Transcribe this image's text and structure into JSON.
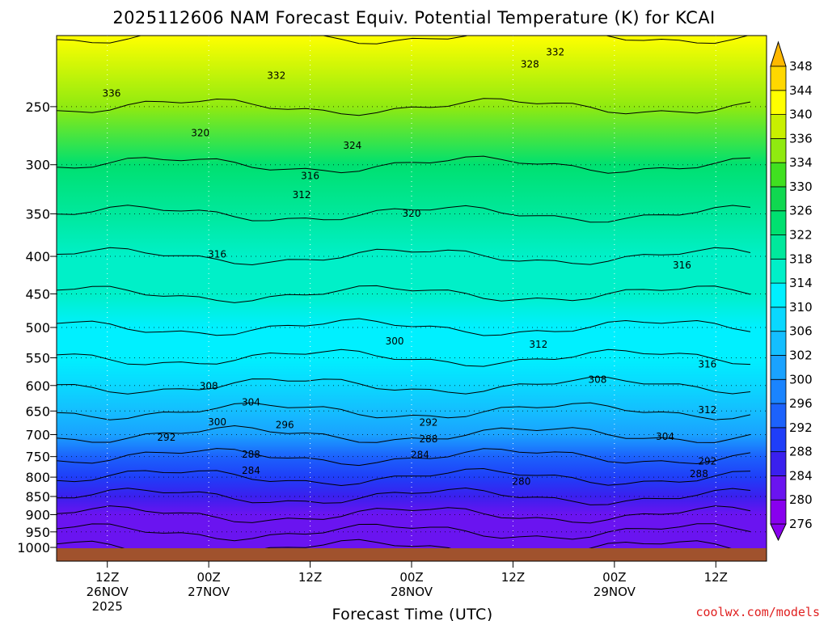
{
  "title": "2025112606 NAM Forecast Equiv. Potential Temperature (K) for KCAI",
  "credit": "coolwx.com/models",
  "chart_data": {
    "type": "heatmap",
    "title": "2025112606 NAM Forecast Equiv. Potential Temperature (K) for KCAI",
    "xlabel": "Forecast Time (UTC)",
    "ylabel": "",
    "x_range_hours": [
      6,
      90
    ],
    "y_range_mb": [
      200,
      1000
    ],
    "y_scale": "log",
    "y_ticks": [
      250,
      300,
      350,
      400,
      450,
      500,
      550,
      600,
      650,
      700,
      750,
      800,
      850,
      900,
      950,
      1000
    ],
    "x_ticks": [
      {
        "hour": 12,
        "lines": [
          "12Z",
          "26NOV",
          "2025"
        ]
      },
      {
        "hour": 24,
        "lines": [
          "00Z",
          "27NOV"
        ]
      },
      {
        "hour": 36,
        "lines": [
          "12Z"
        ]
      },
      {
        "hour": 48,
        "lines": [
          "00Z",
          "28NOV"
        ]
      },
      {
        "hour": 60,
        "lines": [
          "12Z"
        ]
      },
      {
        "hour": 72,
        "lines": [
          "00Z",
          "29NOV"
        ]
      },
      {
        "hour": 84,
        "lines": [
          "12Z"
        ]
      }
    ],
    "grid": true,
    "colorbar": {
      "levels": [
        276,
        280,
        284,
        288,
        292,
        296,
        300,
        302,
        306,
        310,
        314,
        318,
        322,
        326,
        330,
        334,
        336,
        340,
        344,
        348
      ],
      "colors": [
        "#8800ee",
        "#6a14f0",
        "#3a20ee",
        "#1f3ef8",
        "#1c62fc",
        "#1a84ff",
        "#1aa2ff",
        "#14beff",
        "#0ad8ff",
        "#00f0ff",
        "#00f0c8",
        "#00e89c",
        "#00e070",
        "#10d850",
        "#40e020",
        "#90ea10",
        "#c8f000",
        "#ffff00",
        "#ffd800",
        "#ffb800"
      ],
      "position": "right"
    },
    "profile_at_12z_26nov": [
      {
        "p": 200,
        "theta_e": 342
      },
      {
        "p": 250,
        "theta_e": 335
      },
      {
        "p": 300,
        "theta_e": 322
      },
      {
        "p": 350,
        "theta_e": 318
      },
      {
        "p": 400,
        "theta_e": 316
      },
      {
        "p": 450,
        "theta_e": 314
      },
      {
        "p": 500,
        "theta_e": 312
      },
      {
        "p": 550,
        "theta_e": 310
      },
      {
        "p": 600,
        "theta_e": 308
      },
      {
        "p": 650,
        "theta_e": 304
      },
      {
        "p": 700,
        "theta_e": 300
      },
      {
        "p": 750,
        "theta_e": 292
      },
      {
        "p": 800,
        "theta_e": 288
      },
      {
        "p": 850,
        "theta_e": 284
      },
      {
        "p": 900,
        "theta_e": 282
      },
      {
        "p": 950,
        "theta_e": 281
      },
      {
        "p": 1000,
        "theta_e": 281
      }
    ],
    "contour_labels": [
      {
        "value": "336",
        "hour": 12.5,
        "p": 240
      },
      {
        "value": "332",
        "hour": 32,
        "p": 227
      },
      {
        "value": "320",
        "hour": 23,
        "p": 272
      },
      {
        "value": "324",
        "hour": 41,
        "p": 283
      },
      {
        "value": "316",
        "hour": 36,
        "p": 311
      },
      {
        "value": "312",
        "hour": 35,
        "p": 330
      },
      {
        "value": "320",
        "hour": 48,
        "p": 350
      },
      {
        "value": "316",
        "hour": 25,
        "p": 398
      },
      {
        "value": "300",
        "hour": 46,
        "p": 523
      },
      {
        "value": "312",
        "hour": 63,
        "p": 528
      },
      {
        "value": "308",
        "hour": 24,
        "p": 602
      },
      {
        "value": "304",
        "hour": 29,
        "p": 633
      },
      {
        "value": "300",
        "hour": 25,
        "p": 674
      },
      {
        "value": "296",
        "hour": 33,
        "p": 680
      },
      {
        "value": "292",
        "hour": 50,
        "p": 675
      },
      {
        "value": "292",
        "hour": 19,
        "p": 707
      },
      {
        "value": "288",
        "hour": 50,
        "p": 711
      },
      {
        "value": "288",
        "hour": 29,
        "p": 746
      },
      {
        "value": "284",
        "hour": 49,
        "p": 747
      },
      {
        "value": "284",
        "hour": 29,
        "p": 785
      },
      {
        "value": "280",
        "hour": 61,
        "p": 812
      },
      {
        "value": "332",
        "hour": 65,
        "p": 211
      },
      {
        "value": "328",
        "hour": 62,
        "p": 219
      },
      {
        "value": "316",
        "hour": 80,
        "p": 412
      },
      {
        "value": "316",
        "hour": 83,
        "p": 562
      },
      {
        "value": "308",
        "hour": 70,
        "p": 590
      },
      {
        "value": "312",
        "hour": 83,
        "p": 649
      },
      {
        "value": "304",
        "hour": 78,
        "p": 705
      },
      {
        "value": "292",
        "hour": 83,
        "p": 762
      },
      {
        "value": "288",
        "hour": 82,
        "p": 793
      }
    ]
  }
}
